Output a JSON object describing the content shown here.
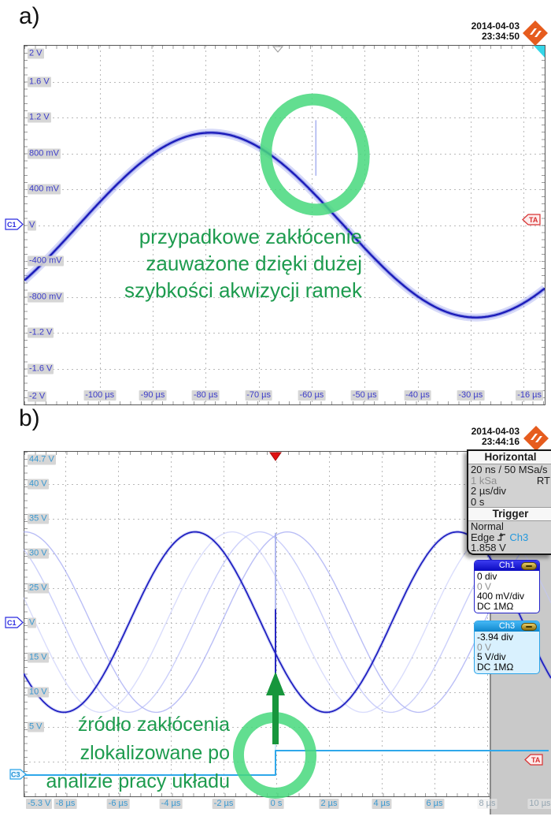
{
  "panel_a": {
    "figure_label": "a)",
    "date": "2014-04-03",
    "time": "23:34:50",
    "logo": "rohde-schwarz-logo",
    "y_axis_labels": [
      "2 V",
      "1.6 V",
      "1.2 V",
      "800 mV",
      "400 mV",
      "V",
      "-400 mV",
      "-800 mV",
      "-1.2 V",
      "-1.6 V",
      "-2 V"
    ],
    "x_axis_labels": [
      "-100 µs",
      "-90 µs",
      "-80 µs",
      "-70 µs",
      "-60 µs",
      "-50 µs",
      "-40 µs",
      "-30 µs",
      "-16 µs"
    ],
    "channel_tag": "C1",
    "ta_tag": "TA",
    "annotation_lines": [
      "przypadkowe zakłócenie",
      "zauważone dzięki dużej",
      "szybkości akwizycji ramek"
    ]
  },
  "panel_b": {
    "figure_label": "b)",
    "date": "2014-04-03",
    "time": "23:44:16",
    "y_axis_labels": [
      "44.7 V",
      "40 V",
      "35 V",
      "30 V",
      "25 V",
      "V",
      "15 V",
      "10 V",
      "5 V"
    ],
    "y_axis_bottom_label": "-5.3 V",
    "x_axis_labels": [
      "-8 µs",
      "-6 µs",
      "-4 µs",
      "-2 µs",
      "0 s",
      "2 µs",
      "4 µs",
      "6 µs"
    ],
    "x_axis_labels_gray": [
      "8 µs",
      "10 µs"
    ],
    "channel_tag_c1": "C1",
    "channel_tag_c3": "C3",
    "ta_tag": "TA",
    "annotation_lines": [
      "źródło zakłócenia",
      "zlokalizowane po",
      "analizie pracy układu"
    ],
    "menu": {
      "horizontal_title": "Horizontal",
      "resolution": "20 ns / 50 MSa/s",
      "record_length": "1 kSa",
      "acquisition_mode": "RT",
      "timebase": "2 µs/div",
      "position": "0 s",
      "trigger_title": "Trigger",
      "trigger_mode": "Normal",
      "trigger_type": "Edge",
      "trigger_source": "Ch3",
      "trigger_level": "1.858 V"
    },
    "ch1_box": {
      "title": "Ch1",
      "rows": [
        "0 div",
        "0 V",
        "400 mV/div",
        "DC 1MΩ"
      ]
    },
    "ch3_box": {
      "title": "Ch3",
      "rows": [
        "-3.94 div",
        "0 V",
        "5 V/div",
        "DC 1MΩ"
      ]
    }
  },
  "chart_data": [
    {
      "type": "line",
      "title": "Ch1 sine with random glitch (panel a)",
      "x_unit": "µs",
      "y_unit": "V",
      "x_range": [
        -114.2,
        -16
      ],
      "y_range": [
        -2,
        2
      ],
      "x_tick_us": 10,
      "y_tick_v": 0.4,
      "series": [
        {
          "name": "Ch1",
          "kind": "sine",
          "amplitude_v": 1.03,
          "period_us": 100,
          "peak_at_us": -79
        },
        {
          "name": "glitch",
          "kind": "spike",
          "at_us": -59.2,
          "v_from": 0.55,
          "v_to": 1.17
        }
      ]
    },
    {
      "type": "line",
      "title": "Ch1 sine frames + Ch3 step, glitch source at t=0 (panel b)",
      "x_unit": "µs",
      "y_unit": "V",
      "x_range": [
        -9.55,
        10.45
      ],
      "y_range_ch3": [
        -5.3,
        44.7
      ],
      "x_tick_us": 2,
      "y_tick_v_ch3": 5,
      "series": [
        {
          "name": "Ch1",
          "kind": "sine",
          "amplitude_v": 1.04,
          "period_us": 9.95,
          "peak_at_us": -3.05,
          "ghost_offsets_us": [
            1.4,
            2.45,
            3.5
          ]
        },
        {
          "name": "Ch3",
          "kind": "step",
          "low_v": -2.05,
          "high_v": 1.48,
          "step_at_us": 0
        },
        {
          "name": "glitch",
          "kind": "spike",
          "at_us": 0,
          "v_from": -0.85,
          "v_to": 1.03
        }
      ]
    }
  ]
}
